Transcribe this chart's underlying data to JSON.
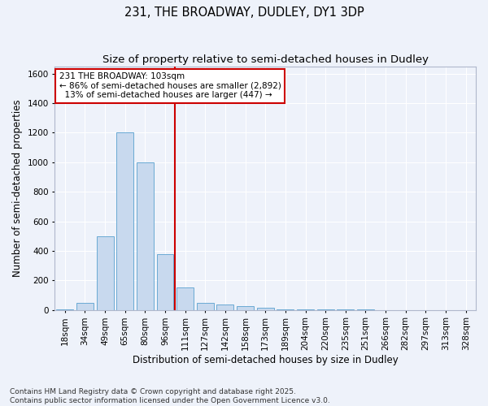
{
  "title": "231, THE BROADWAY, DUDLEY, DY1 3DP",
  "subtitle": "Size of property relative to semi-detached houses in Dudley",
  "xlabel": "Distribution of semi-detached houses by size in Dudley",
  "ylabel": "Number of semi-detached properties",
  "categories": [
    "18sqm",
    "34sqm",
    "49sqm",
    "65sqm",
    "80sqm",
    "96sqm",
    "111sqm",
    "127sqm",
    "142sqm",
    "158sqm",
    "173sqm",
    "189sqm",
    "204sqm",
    "220sqm",
    "235sqm",
    "251sqm",
    "266sqm",
    "282sqm",
    "297sqm",
    "313sqm",
    "328sqm"
  ],
  "values": [
    5,
    50,
    500,
    1200,
    1000,
    375,
    150,
    50,
    35,
    25,
    15,
    5,
    3,
    2,
    1,
    1,
    0,
    0,
    0,
    0,
    0
  ],
  "bar_color": "#c8d9ee",
  "bar_edge_color": "#6aaad4",
  "property_line_x": 5.5,
  "annotation_line1": "231 THE BROADWAY: 103sqm",
  "annotation_line2": "← 86% of semi-detached houses are smaller (2,892)",
  "annotation_line3": "  13% of semi-detached houses are larger (447) →",
  "annotation_box_color": "#ffffff",
  "annotation_box_edge_color": "#cc0000",
  "vline_color": "#cc0000",
  "ylim": [
    0,
    1650
  ],
  "yticks": [
    0,
    200,
    400,
    600,
    800,
    1000,
    1200,
    1400,
    1600
  ],
  "background_color": "#eef2fa",
  "footer_text": "Contains HM Land Registry data © Crown copyright and database right 2025.\nContains public sector information licensed under the Open Government Licence v3.0.",
  "title_fontsize": 10.5,
  "subtitle_fontsize": 9.5,
  "axis_label_fontsize": 8.5,
  "tick_fontsize": 7.5,
  "annotation_fontsize": 7.5,
  "footer_fontsize": 6.5
}
